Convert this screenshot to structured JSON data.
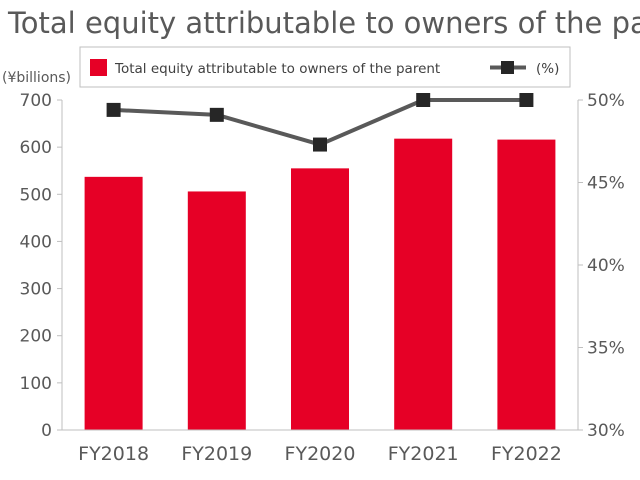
{
  "chart_data": {
    "type": "bar",
    "title": "Total equity attributable to owners of the parent",
    "categories": [
      "FY2018",
      "FY2019",
      "FY2020",
      "FY2021",
      "FY2022"
    ],
    "series": [
      {
        "name": "Total equity attributable to owners of the parent",
        "type": "bar",
        "axis": "left",
        "color": "#E60026",
        "values": [
          537,
          506,
          555,
          618,
          616
        ]
      },
      {
        "name": "(%)",
        "type": "line",
        "axis": "right",
        "color": "#595959",
        "values": [
          49.4,
          49.1,
          47.3,
          50.0,
          50.0
        ]
      }
    ],
    "y_left": {
      "label": "(¥billions)",
      "min": 0,
      "max": 700,
      "ticks": [
        "0",
        "100",
        "200",
        "300",
        "400",
        "500",
        "600",
        "700"
      ]
    },
    "y_right": {
      "label": "",
      "min": 30,
      "max": 50,
      "ticks": [
        "30%",
        "35%",
        "40%",
        "45%",
        "50%"
      ]
    },
    "legend_position": "top",
    "grid": false
  }
}
